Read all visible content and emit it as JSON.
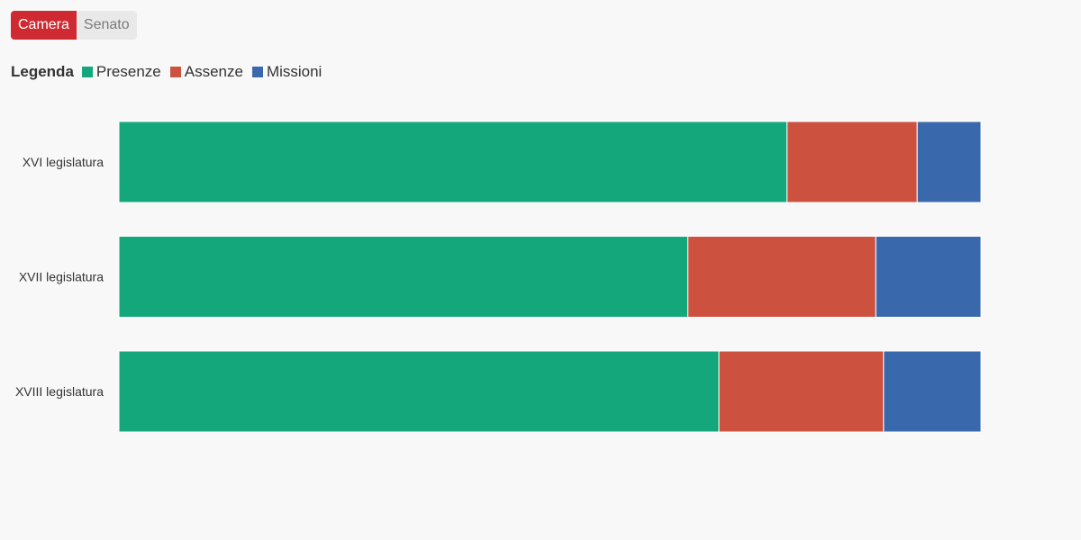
{
  "tabs": [
    {
      "label": "Camera",
      "active": true
    },
    {
      "label": "Senato",
      "active": false
    }
  ],
  "legend": {
    "title": "Legenda",
    "items": [
      {
        "label": "Presenze",
        "color": "#14a77b"
      },
      {
        "label": "Assenze",
        "color": "#cc523f"
      },
      {
        "label": "Missioni",
        "color": "#3a68ac"
      }
    ]
  },
  "chart_data": {
    "type": "bar",
    "orientation": "horizontal",
    "stacked": true,
    "normalized": true,
    "categories": [
      "XVI legislatura",
      "XVII legislatura",
      "XVIII legislatura"
    ],
    "series": [
      {
        "name": "Presenze",
        "color": "#14a77b",
        "values": [
          77.5,
          66.0,
          69.6
        ]
      },
      {
        "name": "Assenze",
        "color": "#cc523f",
        "values": [
          15.1,
          21.8,
          19.1
        ]
      },
      {
        "name": "Missioni",
        "color": "#3a68ac",
        "values": [
          7.4,
          12.2,
          11.3
        ]
      }
    ],
    "xlim": [
      0,
      100
    ],
    "grid": false,
    "legend_position": "top-left"
  }
}
